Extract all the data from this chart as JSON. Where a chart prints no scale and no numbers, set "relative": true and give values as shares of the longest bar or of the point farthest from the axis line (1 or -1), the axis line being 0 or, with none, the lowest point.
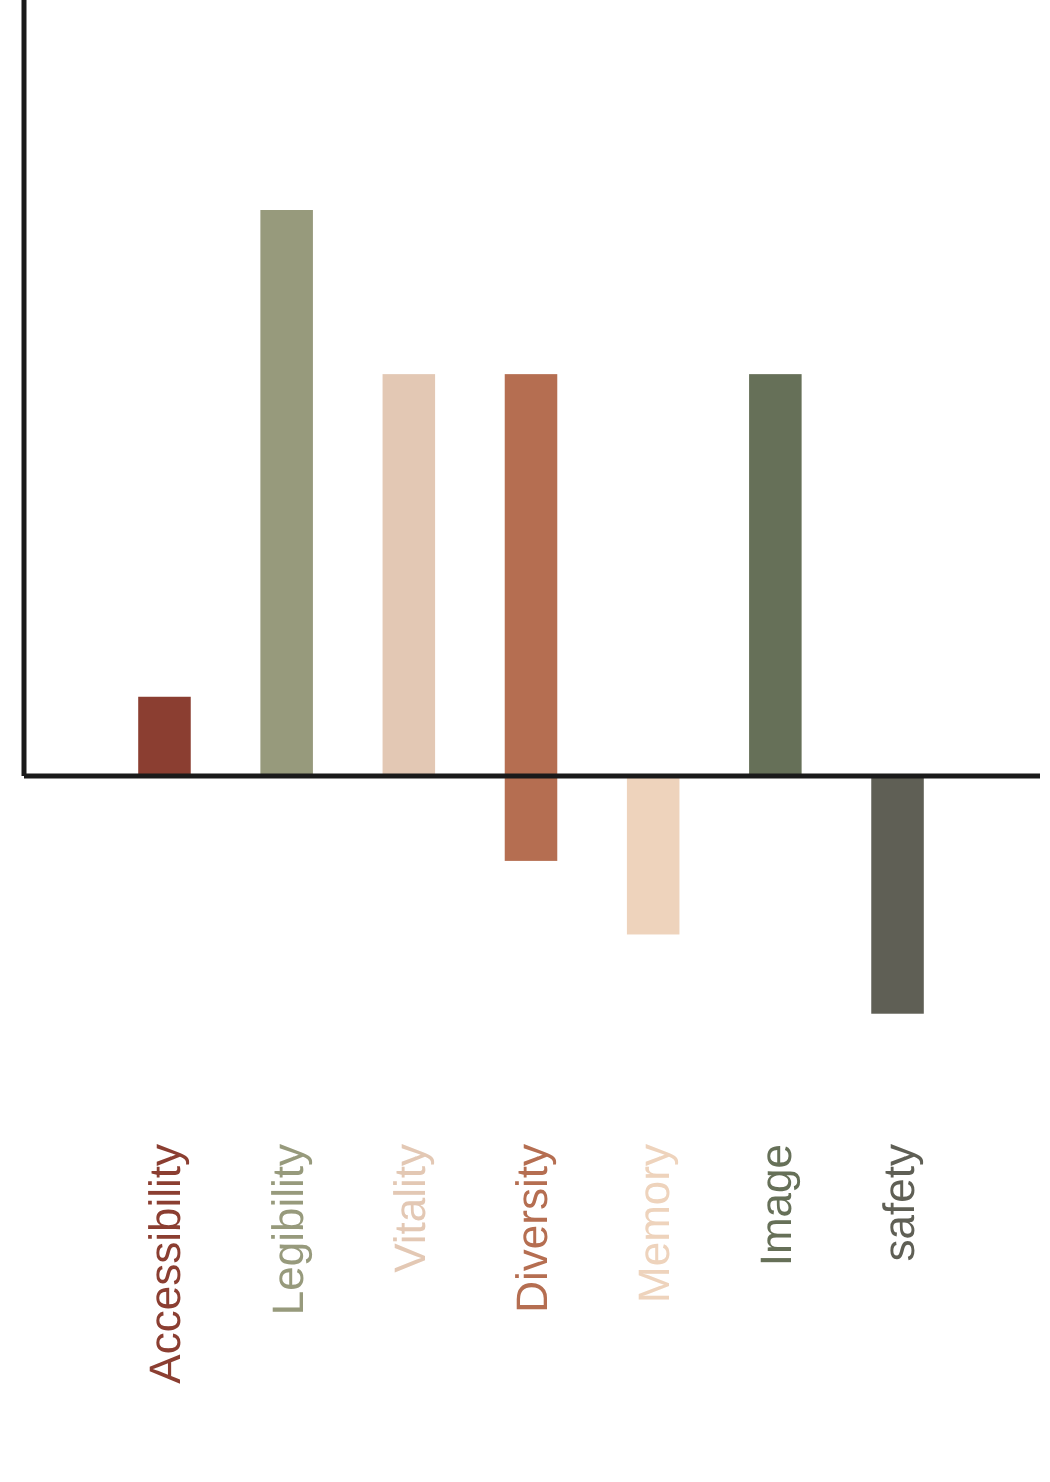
{
  "chart_data": {
    "type": "bar",
    "relative": true,
    "stacked": true,
    "categories": [
      "Accessibility",
      "Legibility",
      "Vitality",
      "Diversity",
      "Memory",
      "Image",
      "safety"
    ],
    "series": [
      {
        "values": [
          0.14,
          1,
          0.71,
          0.71,
          -0.28,
          0.71,
          -0.42
        ],
        "colors": [
          "#8b3e31",
          "#979a7c",
          "#e3c8b4",
          "#b56e51",
          "#eed3bc",
          "#667058",
          "#5f5f55"
        ]
      },
      {
        "values": [
          null,
          null,
          null,
          -0.15,
          null,
          null,
          null
        ],
        "color": "#b56e51"
      }
    ]
  }
}
